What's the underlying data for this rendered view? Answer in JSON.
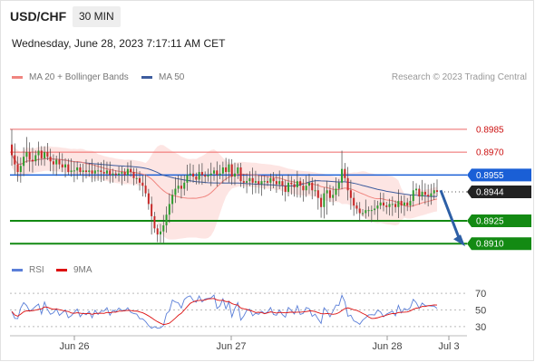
{
  "header": {
    "symbol": "USD/CHF",
    "timeframe": "30 MIN",
    "datetime": "Wednesday, June 28, 2023 7:17:11 AM CET"
  },
  "legend": {
    "ma20": {
      "label": "MA 20 + Bollinger Bands",
      "color": "#f0857f"
    },
    "ma50": {
      "label": "MA 50",
      "color": "#3d5c9e"
    },
    "rsi": {
      "label": "RSI",
      "color": "#5b7fd8"
    },
    "ma9": {
      "label": "9MA",
      "color": "#dd1111"
    }
  },
  "copyright": "Research © 2023 Trading Central",
  "colors": {
    "up": "#2e9c2e",
    "down": "#c62828",
    "resistance": "#ee6666",
    "resistance_label": "#cc1111",
    "pivot": "#1a5fd6",
    "support": "#138a13",
    "band_fill": "#fde5e3",
    "arrow": "#2d5fa6"
  },
  "chart_data": [
    {
      "type": "candlestick",
      "x_ticks": [
        "Jun 26",
        "Jun 27",
        "Jun 28",
        "Jul 3"
      ],
      "levels": [
        {
          "value": 0.8985,
          "label": "0.8985",
          "kind": "resistance"
        },
        {
          "value": 0.897,
          "label": "0.8970",
          "kind": "resistance"
        },
        {
          "value": 0.8955,
          "label": "0.8955",
          "kind": "pivot"
        },
        {
          "value": 0.8944,
          "label": "0.8944",
          "kind": "last"
        },
        {
          "value": 0.8925,
          "label": "0.8925",
          "kind": "support"
        },
        {
          "value": 0.891,
          "label": "0.8910",
          "kind": "support"
        }
      ],
      "closes": [
        0.8968,
        0.8962,
        0.8957,
        0.8961,
        0.8967,
        0.897,
        0.8965,
        0.8964,
        0.8968,
        0.8971,
        0.8966,
        0.897,
        0.8967,
        0.8964,
        0.8962,
        0.8965,
        0.8962,
        0.896,
        0.8962,
        0.8957,
        0.8958,
        0.8958,
        0.896,
        0.8957,
        0.8958,
        0.8957,
        0.8958,
        0.8956,
        0.8958,
        0.8958,
        0.8957,
        0.8956,
        0.8958,
        0.8955,
        0.8956,
        0.8955,
        0.8956,
        0.8957,
        0.8955,
        0.8959,
        0.8957,
        0.8953,
        0.8953,
        0.895,
        0.8948,
        0.8943,
        0.8936,
        0.8928,
        0.892,
        0.8916,
        0.8918,
        0.8922,
        0.8929,
        0.8936,
        0.8942,
        0.8946,
        0.8948,
        0.8946,
        0.895,
        0.8955,
        0.8956,
        0.8954,
        0.8952,
        0.8957,
        0.8955,
        0.8954,
        0.8955,
        0.8956,
        0.8958,
        0.8955,
        0.8956,
        0.896,
        0.8957,
        0.8962,
        0.8954,
        0.8956,
        0.896,
        0.8951,
        0.895,
        0.8951,
        0.8953,
        0.895,
        0.8951,
        0.8949,
        0.8951,
        0.8951,
        0.895,
        0.8953,
        0.8951,
        0.8949,
        0.8951,
        0.8948,
        0.8944,
        0.895,
        0.8949,
        0.8947,
        0.8951,
        0.8948,
        0.8945,
        0.8948,
        0.895,
        0.8945,
        0.8945,
        0.894,
        0.8934,
        0.8943,
        0.8945,
        0.894,
        0.8942,
        0.8946,
        0.895,
        0.8959,
        0.8953,
        0.8945,
        0.894,
        0.8935,
        0.8933,
        0.893,
        0.893,
        0.8932,
        0.8932,
        0.8932,
        0.8933,
        0.8935,
        0.8937,
        0.8935,
        0.8934,
        0.8936,
        0.8936,
        0.8934,
        0.8938,
        0.8935,
        0.8937,
        0.8935,
        0.8938,
        0.8945,
        0.8946,
        0.8941,
        0.8944,
        0.8942,
        0.8941,
        0.8943,
        0.8945,
        0.8944
      ],
      "price_range": [
        0.8903,
        0.8998
      ]
    },
    {
      "type": "line",
      "title": "RSI",
      "y_ticks": [
        70,
        50,
        30
      ],
      "ylim": [
        20,
        80
      ]
    }
  ]
}
